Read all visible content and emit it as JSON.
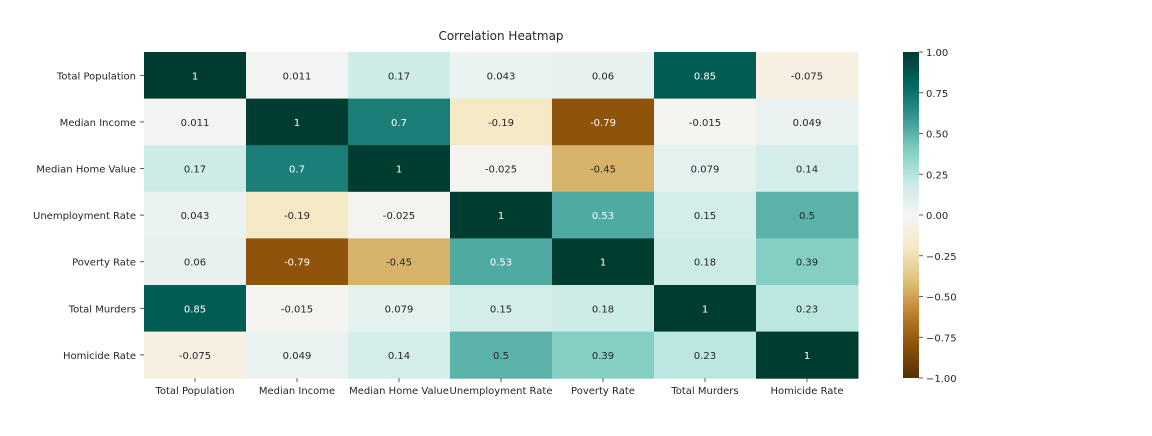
{
  "chart_data": {
    "type": "heatmap",
    "title": "Correlation Heatmap",
    "row_labels": [
      "Total Population",
      "Median Income",
      "Median Home Value",
      "Unemployment Rate",
      "Poverty Rate",
      "Total Murders",
      "Homicide Rate"
    ],
    "col_labels": [
      "Total Population",
      "Median Income",
      "Median Home Value",
      "Unemployment Rate",
      "Poverty Rate",
      "Total Murders",
      "Homicide Rate"
    ],
    "values": [
      [
        1,
        0.011,
        0.17,
        0.043,
        0.06,
        0.85,
        -0.075
      ],
      [
        0.011,
        1,
        0.7,
        -0.19,
        -0.79,
        -0.015,
        0.049
      ],
      [
        0.17,
        0.7,
        1,
        -0.025,
        -0.45,
        0.079,
        0.14
      ],
      [
        0.043,
        -0.19,
        -0.025,
        1,
        0.53,
        0.15,
        0.5
      ],
      [
        0.06,
        -0.79,
        -0.45,
        0.53,
        1,
        0.18,
        0.39
      ],
      [
        0.85,
        -0.015,
        0.079,
        0.15,
        0.18,
        1,
        0.23
      ],
      [
        -0.075,
        0.049,
        0.14,
        0.5,
        0.39,
        0.23,
        1
      ]
    ],
    "cell_labels": [
      [
        "1",
        "0.011",
        "0.17",
        "0.043",
        "0.06",
        "0.85",
        "-0.075"
      ],
      [
        "0.011",
        "1",
        "0.7",
        "-0.19",
        "-0.79",
        "-0.015",
        "0.049"
      ],
      [
        "0.17",
        "0.7",
        "1",
        "-0.025",
        "-0.45",
        "0.079",
        "0.14"
      ],
      [
        "0.043",
        "-0.19",
        "-0.025",
        "1",
        "0.53",
        "0.15",
        "0.5"
      ],
      [
        "0.06",
        "-0.79",
        "-0.45",
        "0.53",
        "1",
        "0.18",
        "0.39"
      ],
      [
        "0.85",
        "-0.015",
        "0.079",
        "0.15",
        "0.18",
        "1",
        "0.23"
      ],
      [
        "-0.075",
        "0.049",
        "0.14",
        "0.5",
        "0.39",
        "0.23",
        "1"
      ]
    ],
    "colormap": "BrBG",
    "vmin": -1,
    "vmax": 1,
    "colorbar_ticks": [
      1.0,
      0.75,
      0.5,
      0.25,
      0.0,
      -0.25,
      -0.5,
      -0.75,
      -1.0
    ],
    "colorbar_tick_labels": [
      "1.00",
      "0.75",
      "0.50",
      "0.25",
      "0.00",
      "−0.25",
      "−0.50",
      "−0.75",
      "−1.00"
    ],
    "colormap_stops": [
      {
        "v": -1.0,
        "color": "#543005"
      },
      {
        "v": -0.8,
        "color": "#8c510a"
      },
      {
        "v": -0.6,
        "color": "#bf812d"
      },
      {
        "v": -0.4,
        "color": "#dfc27d"
      },
      {
        "v": -0.2,
        "color": "#f6e8c3"
      },
      {
        "v": 0.0,
        "color": "#f5f5f5"
      },
      {
        "v": 0.2,
        "color": "#c7eae5"
      },
      {
        "v": 0.4,
        "color": "#80cdc1"
      },
      {
        "v": 0.6,
        "color": "#35978f"
      },
      {
        "v": 0.8,
        "color": "#01665e"
      },
      {
        "v": 1.0,
        "color": "#003c30"
      }
    ]
  }
}
